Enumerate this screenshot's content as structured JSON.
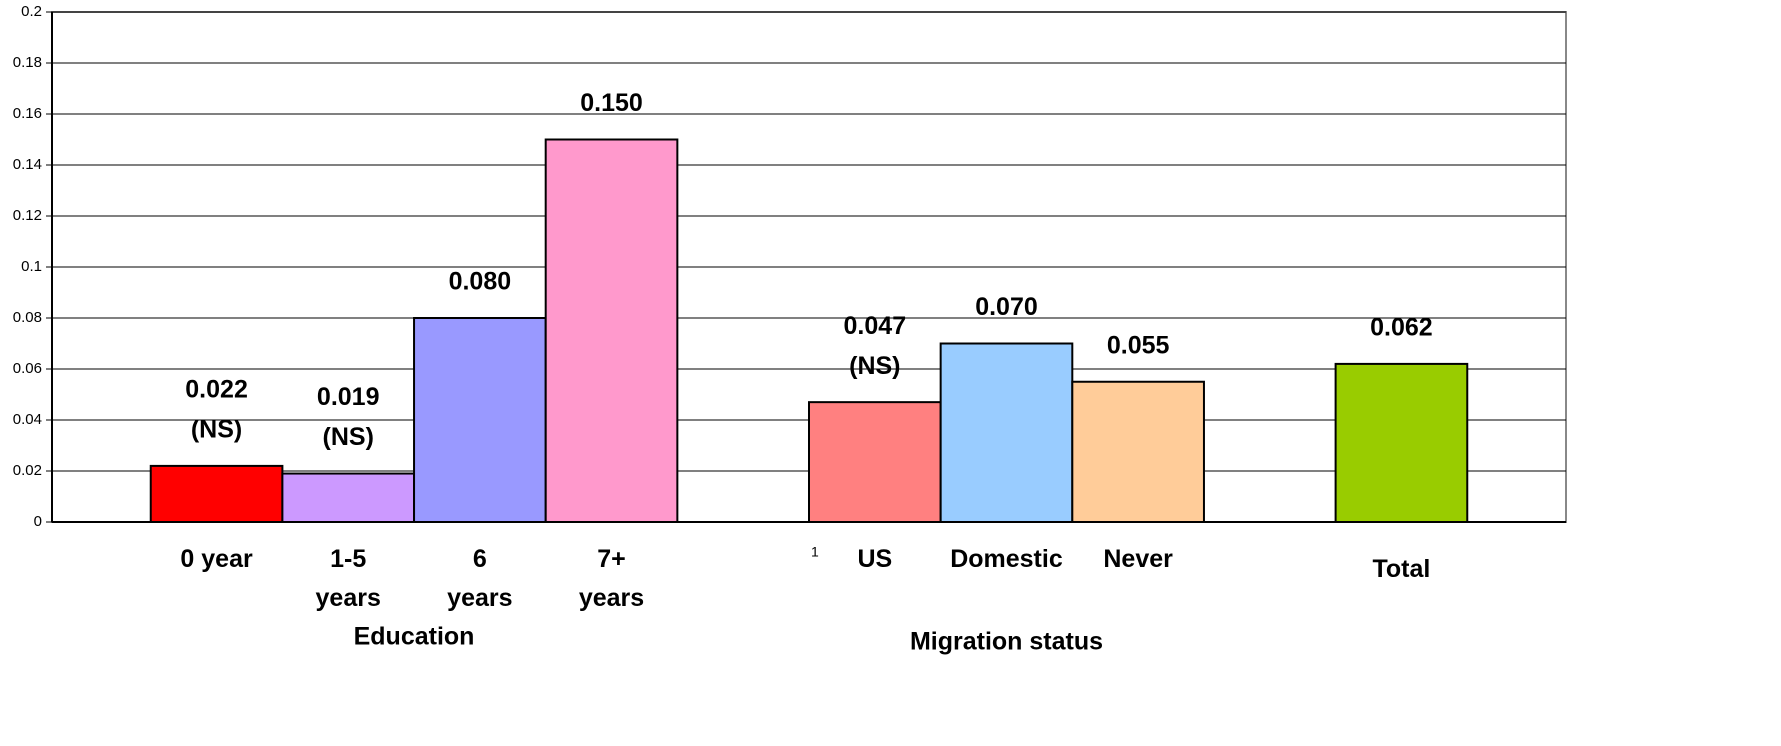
{
  "chart_data": {
    "type": "bar",
    "categories": [
      "0 year",
      "1-5\nyears",
      "6\nyears",
      "7+\nyears",
      null,
      "US",
      "Domestic",
      "Never",
      null,
      "Total"
    ],
    "values": [
      0.022,
      0.019,
      0.08,
      0.15,
      null,
      0.047,
      0.07,
      0.055,
      null,
      0.062
    ],
    "value_labels": [
      [
        "0.022",
        "(NS)"
      ],
      [
        "0.019",
        "(NS)"
      ],
      [
        "0.080"
      ],
      [
        "0.150"
      ],
      null,
      [
        "0.047",
        "(NS)"
      ],
      [
        "0.070"
      ],
      [
        "0.055"
      ],
      null,
      [
        "0.062"
      ]
    ],
    "colors": [
      "#ff0000",
      "#cc99ff",
      "#9999ff",
      "#ff99cc",
      null,
      "#ff8080",
      "#99ccff",
      "#ffcc99",
      null,
      "#99cc00"
    ],
    "groups": [
      "Education",
      "Migration status"
    ],
    "annotations": [
      "1"
    ],
    "ylim": [
      0,
      0.2
    ],
    "yticks": [
      0,
      0.02,
      0.04,
      0.06,
      0.08,
      0.1,
      0.12,
      0.14,
      0.16,
      0.18,
      0.2
    ],
    "grid": true
  }
}
